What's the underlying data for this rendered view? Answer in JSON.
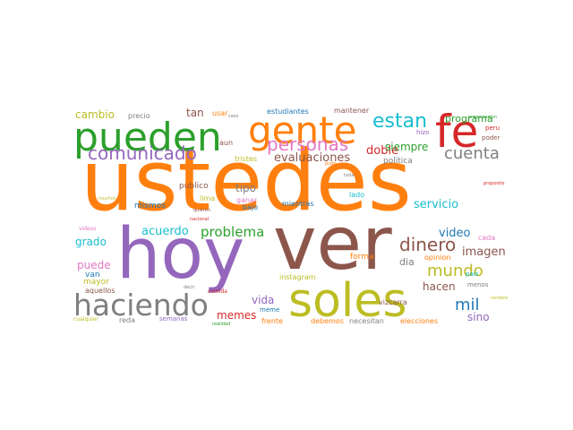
{
  "word_cloud": {
    "palette": {
      "blue": "#1f77b4",
      "orange": "#ff7f0e",
      "green": "#2ca02c",
      "red": "#d62728",
      "purple": "#9467bd",
      "brown": "#8c564b",
      "pink": "#e377c2",
      "gray": "#7f7f7f",
      "olive": "#bcbd22",
      "cyan": "#17becf"
    },
    "words": [
      {
        "text": "ustedes",
        "color": "orange"
      },
      {
        "text": "ver",
        "color": "brown"
      },
      {
        "text": "hoy",
        "color": "purple"
      },
      {
        "text": "soles",
        "color": "olive"
      },
      {
        "text": "pueden",
        "color": "green"
      },
      {
        "text": "gente",
        "color": "orange"
      },
      {
        "text": "fe",
        "color": "red"
      },
      {
        "text": "haciendo",
        "color": "gray"
      },
      {
        "text": "comunicado",
        "color": "purple"
      },
      {
        "text": "personas",
        "color": "pink"
      },
      {
        "text": "estan",
        "color": "cyan"
      },
      {
        "text": "cuenta",
        "color": "gray"
      },
      {
        "text": "dinero",
        "color": "brown"
      },
      {
        "text": "mundo",
        "color": "olive"
      },
      {
        "text": "mil",
        "color": "blue"
      },
      {
        "text": "problema",
        "color": "green"
      },
      {
        "text": "acuerdo",
        "color": "cyan"
      },
      {
        "text": "evaluaciones",
        "color": "brown"
      },
      {
        "text": "doble",
        "color": "red"
      },
      {
        "text": "siempre",
        "color": "green"
      },
      {
        "text": "servicio",
        "color": "cyan"
      },
      {
        "text": "video",
        "color": "blue"
      },
      {
        "text": "imagen",
        "color": "brown"
      },
      {
        "text": "programa",
        "color": "green"
      },
      {
        "text": "cambio",
        "color": "olive"
      },
      {
        "text": "tan",
        "color": "brown"
      },
      {
        "text": "tipo",
        "color": "gray"
      },
      {
        "text": "grado",
        "color": "cyan"
      },
      {
        "text": "puede",
        "color": "pink"
      },
      {
        "text": "vida",
        "color": "purple"
      },
      {
        "text": "memes",
        "color": "red"
      },
      {
        "text": "hacen",
        "color": "brown"
      },
      {
        "text": "sino",
        "color": "purple"
      },
      {
        "text": "dia",
        "color": "gray"
      },
      {
        "text": "politica",
        "color": "gray"
      },
      {
        "text": "mismos",
        "color": "blue"
      },
      {
        "text": "forma",
        "color": "orange"
      },
      {
        "text": "publico",
        "color": "brown"
      },
      {
        "text": "van",
        "color": "blue"
      },
      {
        "text": "mayor",
        "color": "olive"
      },
      {
        "text": "aquellos",
        "color": "brown"
      },
      {
        "text": "precio",
        "color": "gray"
      },
      {
        "text": "usar",
        "color": "orange"
      },
      {
        "text": "estudiantes",
        "color": "blue"
      },
      {
        "text": "mantener",
        "color": "brown"
      },
      {
        "text": "aun",
        "color": "brown"
      },
      {
        "text": "tristes",
        "color": "olive"
      },
      {
        "text": "ganar",
        "color": "pink"
      },
      {
        "text": "bajo",
        "color": "blue"
      },
      {
        "text": "mientras",
        "color": "blue"
      },
      {
        "text": "lima",
        "color": "olive"
      },
      {
        "text": "lado",
        "color": "cyan"
      },
      {
        "text": "instagram",
        "color": "olive"
      },
      {
        "text": "meme",
        "color": "blue"
      },
      {
        "text": "vizcarra",
        "color": "brown"
      },
      {
        "text": "opinion",
        "color": "orange"
      },
      {
        "text": "pais",
        "color": "cyan"
      },
      {
        "text": "menos",
        "color": "gray"
      },
      {
        "text": "cada",
        "color": "pink"
      },
      {
        "text": "frente",
        "color": "orange"
      },
      {
        "text": "debemos",
        "color": "orange"
      },
      {
        "text": "necesitan",
        "color": "gray"
      },
      {
        "text": "elecciones",
        "color": "orange"
      },
      {
        "text": "semanas",
        "color": "purple"
      },
      {
        "text": "reda",
        "color": "gray"
      },
      {
        "text": "cualquier",
        "color": "olive"
      },
      {
        "text": "realidad",
        "color": "green"
      },
      {
        "text": "comida",
        "color": "red"
      },
      {
        "text": "videos",
        "color": "pink"
      },
      {
        "text": "hizo",
        "color": "purple"
      },
      {
        "text": "peru",
        "color": "red"
      },
      {
        "text": "poder",
        "color": "brown"
      },
      {
        "text": "organizacion",
        "color": "green"
      },
      {
        "text": "caso",
        "color": "gray"
      },
      {
        "text": "nombre",
        "color": "olive"
      },
      {
        "text": "muchos",
        "color": "olive"
      },
      {
        "text": "quieren",
        "color": "brown"
      },
      {
        "text": "nacional",
        "color": "red"
      },
      {
        "text": "decir",
        "color": "gray"
      },
      {
        "text": "pudo",
        "color": "orange"
      },
      {
        "text": "toda",
        "color": "gray"
      },
      {
        "text": "proposito",
        "color": "red"
      }
    ]
  }
}
